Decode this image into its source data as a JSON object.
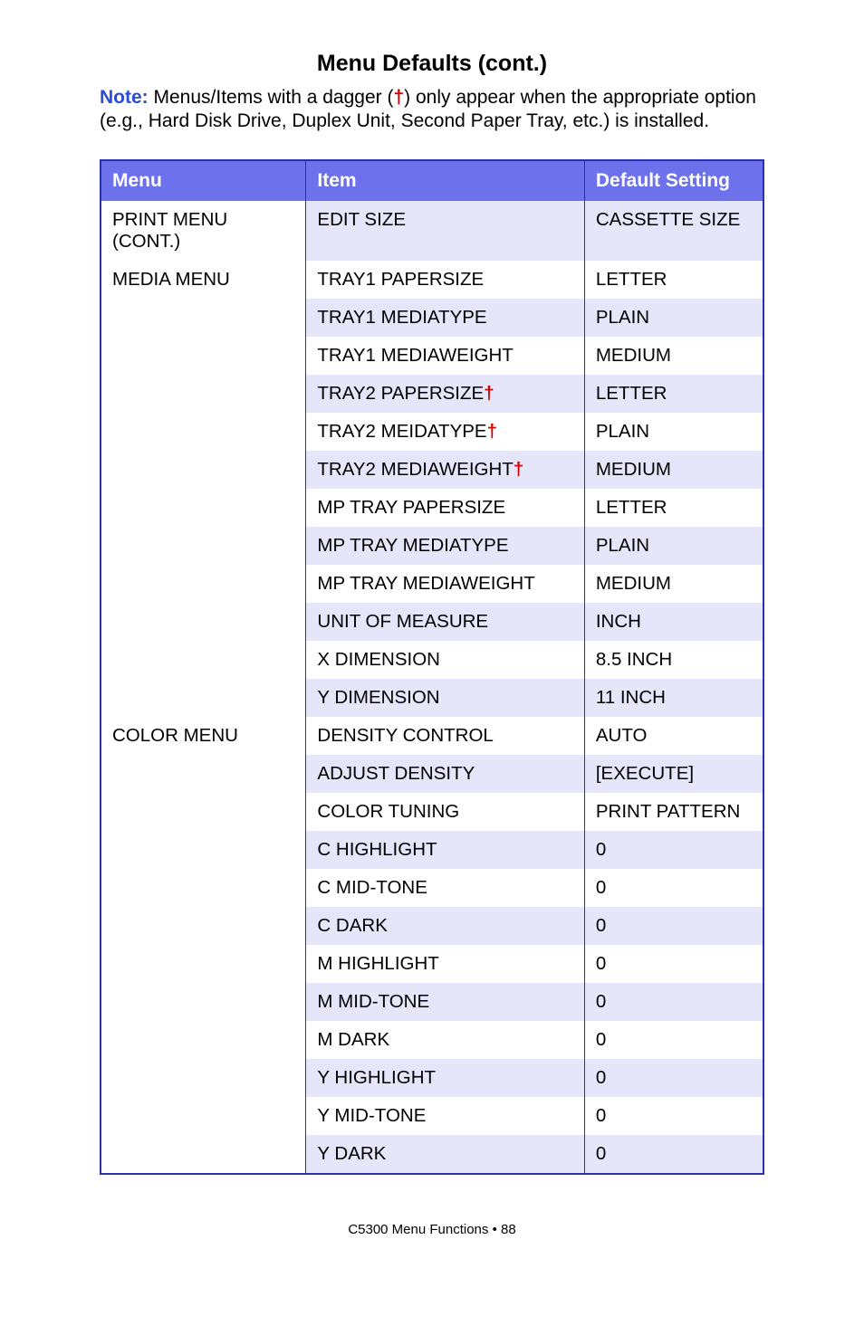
{
  "title": "Menu Defaults (cont.)",
  "note": {
    "label": "Note:",
    "text_before_dagger": " Menus/Items with a dagger (",
    "dagger": "†",
    "text_after_dagger": ") only appear when the appropriate option (e.g., Hard Disk Drive, Duplex Unit, Second Paper Tray, etc.) is installed."
  },
  "table": {
    "headers": {
      "menu": "Menu",
      "item": "Item",
      "default": "Default Setting"
    },
    "sections": [
      {
        "menu": "PRINT MENU (CONT.)",
        "rows": [
          {
            "item": "EDIT SIZE",
            "default": "CASSETTE SIZE",
            "dagger": false
          }
        ]
      },
      {
        "menu": "MEDIA MENU",
        "rows": [
          {
            "item": "TRAY1 PAPERSIZE",
            "default": "LETTER",
            "dagger": false
          },
          {
            "item": "TRAY1 MEDIATYPE",
            "default": "PLAIN",
            "dagger": false
          },
          {
            "item": "TRAY1 MEDIAWEIGHT",
            "default": "MEDIUM",
            "dagger": false
          },
          {
            "item": "TRAY2 PAPERSIZE",
            "default": "LETTER",
            "dagger": true
          },
          {
            "item": "TRAY2 MEIDATYPE",
            "default": "PLAIN",
            "dagger": true
          },
          {
            "item": "TRAY2 MEDIAWEIGHT",
            "default": "MEDIUM",
            "dagger": true
          },
          {
            "item": "MP TRAY PAPERSIZE",
            "default": "LETTER",
            "dagger": false
          },
          {
            "item": "MP TRAY MEDIATYPE",
            "default": "PLAIN",
            "dagger": false
          },
          {
            "item": "MP TRAY MEDIAWEIGHT",
            "default": "MEDIUM",
            "dagger": false
          },
          {
            "item": "UNIT OF MEASURE",
            "default": "INCH",
            "dagger": false
          },
          {
            "item": "X DIMENSION",
            "default": "8.5 INCH",
            "dagger": false
          },
          {
            "item": "Y DIMENSION",
            "default": "11 INCH",
            "dagger": false
          }
        ]
      },
      {
        "menu": "COLOR MENU",
        "rows": [
          {
            "item": "DENSITY CONTROL",
            "default": "AUTO",
            "dagger": false
          },
          {
            "item": "ADJUST DENSITY",
            "default": "[EXECUTE]",
            "dagger": false
          },
          {
            "item": "COLOR TUNING",
            "default": "PRINT PATTERN",
            "dagger": false
          },
          {
            "item": "C HIGHLIGHT",
            "default": "0",
            "dagger": false
          },
          {
            "item": "C MID-TONE",
            "default": "0",
            "dagger": false
          },
          {
            "item": "C DARK",
            "default": "0",
            "dagger": false
          },
          {
            "item": "M HIGHLIGHT",
            "default": "0",
            "dagger": false
          },
          {
            "item": "M MID-TONE",
            "default": "0",
            "dagger": false
          },
          {
            "item": "M DARK",
            "default": "0",
            "dagger": false
          },
          {
            "item": "Y HIGHLIGHT",
            "default": "0",
            "dagger": false
          },
          {
            "item": "Y MID-TONE",
            "default": "0",
            "dagger": false
          },
          {
            "item": "Y DARK",
            "default": "0",
            "dagger": false
          }
        ]
      }
    ]
  },
  "footer": "C5300 Menu Functions  •  88",
  "colors": {
    "header_bg": "#6d71eb",
    "border": "#2a2fb0",
    "stripe_odd": "#e6e6fb",
    "stripe_even": "#ffffff",
    "note_label": "#2a4cd6",
    "dagger": "#d00000"
  }
}
